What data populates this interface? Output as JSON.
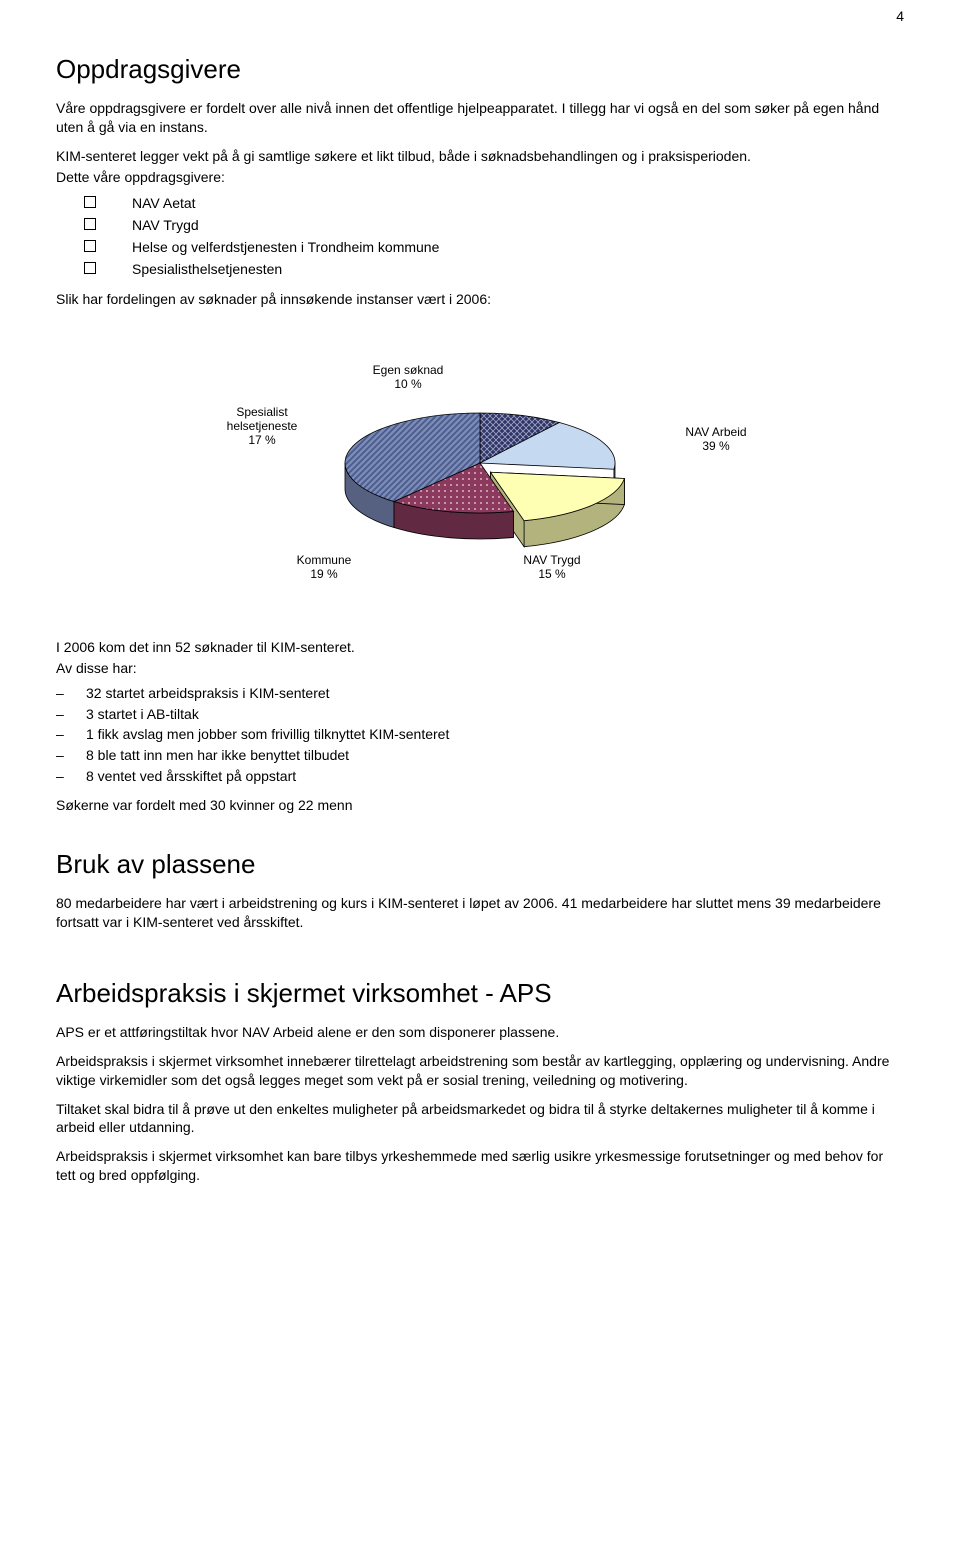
{
  "page_number": "4",
  "section1": {
    "heading": "Oppdragsgivere",
    "para1": "Våre oppdragsgivere er fordelt over alle nivå innen det offentlige hjelpeapparatet. I tillegg har vi også en del som søker på egen hånd uten å gå via en instans.",
    "para2": "KIM-senteret legger vekt på å gi samtlige søkere et likt tilbud, både i søknadsbehandlingen og i praksisperioden.",
    "para3": "Dette våre oppdragsgivere:",
    "checklist": [
      "NAV Aetat",
      "NAV Trygd",
      "Helse og velferdstjenesten i Trondheim kommune",
      "Spesialisthelsetjenesten"
    ],
    "para4": "Slik har fordelingen av søknader på innsøkende instanser vært i 2006:"
  },
  "chart": {
    "type": "pie_3d",
    "background_color": "#ffffff",
    "label_font_family": "Arial",
    "label_font_size": 12,
    "slices": [
      {
        "key": "egen",
        "label_line1": "Egen søknad",
        "label_line2": "10 %",
        "value": 10,
        "fill": "#c5d9f1",
        "pattern_fill": "#333366",
        "pattern": "crosshatch"
      },
      {
        "key": "spesial",
        "label_line1": "Spesialist",
        "label_line2": "helsetjeneste",
        "label_line3": "17 %",
        "value": 17,
        "fill": "#c5d9f1",
        "pattern": "none"
      },
      {
        "key": "kommune",
        "label_line1": "Kommune",
        "label_line2": "19 %",
        "value": 19,
        "fill": "#ffffb3",
        "pattern": "none"
      },
      {
        "key": "trygd",
        "label_line1": "NAV Trygd",
        "label_line2": "15 %",
        "value": 15,
        "fill": "#8b3a5e",
        "pattern": "dots"
      },
      {
        "key": "arbeid",
        "label_line1": "NAV Arbeid",
        "label_line2": "39 %",
        "value": 39,
        "fill": "#7b8bb8",
        "pattern_fill": "#4a5a8a",
        "pattern": "diag"
      }
    ],
    "explode_slice": "kommune",
    "side_color_darken": 0.7,
    "stroke": "#000000",
    "stroke_width": 0.8
  },
  "section2": {
    "para1": "I 2006 kom det inn 52 søknader til KIM-senteret.",
    "para2": "Av disse har:",
    "list": [
      "32 startet arbeidspraksis i KIM-senteret",
      "3 startet i AB-tiltak",
      "1 fikk avslag men jobber som frivillig tilknyttet KIM-senteret",
      "8 ble tatt inn men har ikke benyttet tilbudet",
      "8 ventet ved årsskiftet på oppstart"
    ],
    "para3": "Søkerne var fordelt med 30 kvinner og 22 menn"
  },
  "section3": {
    "heading": "Bruk av plassene",
    "para1": "80 medarbeidere har vært i arbeidstrening og kurs i KIM-senteret i løpet av 2006. 41 medarbeidere har sluttet mens 39 medarbeidere fortsatt var i KIM-senteret ved årsskiftet."
  },
  "section4": {
    "heading": "Arbeidspraksis i skjermet virksomhet - APS",
    "para1": "APS er et attføringstiltak hvor NAV Arbeid alene er den som disponerer plassene.",
    "para2": "Arbeidspraksis i skjermet virksomhet innebærer tilrettelagt arbeidstrening som består av kartlegging, opplæring og undervisning. Andre viktige virkemidler som det også legges meget som vekt på er sosial trening, veiledning og motivering.",
    "para3": "Tiltaket skal bidra til å prøve ut den enkeltes muligheter på arbeidsmarkedet og bidra til å styrke deltakernes muligheter til å komme i arbeid eller utdanning.",
    "para4": "Arbeidspraksis i skjermet virksomhet kan bare tilbys yrkeshemmede med særlig usikre yrkesmessige forutsetninger og med behov for tett og bred oppfølging."
  }
}
